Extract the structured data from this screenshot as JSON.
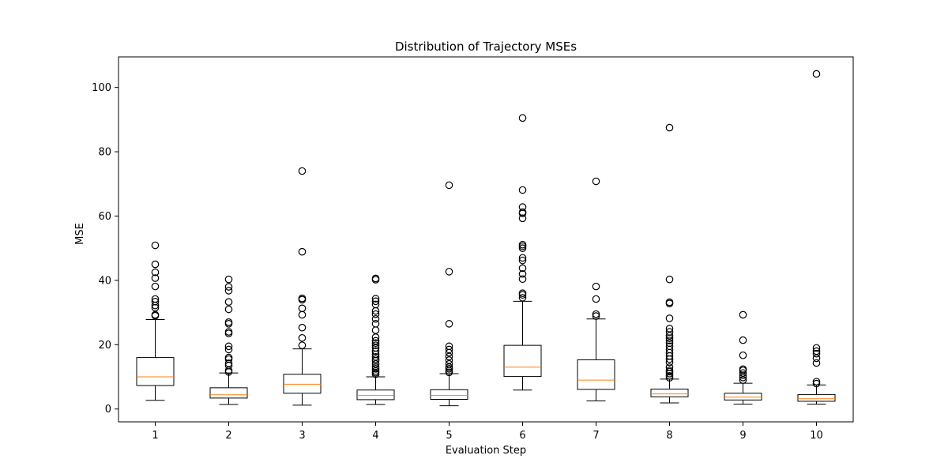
{
  "chart_data": {
    "type": "boxplot",
    "title": "Distribution of Trajectory MSEs",
    "xlabel": "Evaluation Step",
    "ylabel": "MSE",
    "ylim": [
      -4,
      109.5
    ],
    "yticks": [
      0,
      20,
      40,
      60,
      80,
      100
    ],
    "categories": [
      "1",
      "2",
      "3",
      "4",
      "5",
      "6",
      "7",
      "8",
      "9",
      "10"
    ],
    "grid": false,
    "colors": {
      "box": "#000000",
      "median": "#ff7f0e",
      "flier": "#000000"
    },
    "boxes": [
      {
        "label": "1",
        "whisker_low": 2.7,
        "q1": 7.3,
        "median": 10.0,
        "q3": 16.0,
        "whisker_high": 27.8,
        "fliers": [
          29.0,
          29.3,
          31.5,
          32.2,
          33.4,
          34.2,
          38.1,
          40.7,
          42.5,
          45.0,
          50.9
        ]
      },
      {
        "label": "2",
        "whisker_low": 1.4,
        "q1": 3.4,
        "median": 4.4,
        "q3": 6.6,
        "whisker_high": 11.2,
        "fliers": [
          11.5,
          12.0,
          13.5,
          14.2,
          15.5,
          16.0,
          18.5,
          19.5,
          23.5,
          24.0,
          26.5,
          27.0,
          31.0,
          33.3,
          36.8,
          38.0,
          40.3
        ]
      },
      {
        "label": "3",
        "whisker_low": 1.2,
        "q1": 4.9,
        "median": 7.7,
        "q3": 10.8,
        "whisker_high": 18.7,
        "fliers": [
          19.8,
          22.1,
          25.3,
          29.3,
          31.3,
          34.0,
          34.4,
          48.9,
          74.0
        ]
      },
      {
        "label": "4",
        "whisker_low": 1.4,
        "q1": 2.9,
        "median": 4.2,
        "q3": 5.9,
        "whisker_high": 10.0,
        "fliers": [
          10.8,
          11.3,
          11.8,
          12.5,
          13.0,
          14.0,
          15.0,
          15.5,
          16.2,
          17.0,
          18.0,
          19.0,
          19.8,
          20.5,
          21.2,
          22.3,
          24.5,
          26.5,
          28.0,
          29.5,
          30.5,
          32.5,
          33.5,
          34.3,
          40.2,
          40.6
        ]
      },
      {
        "label": "5",
        "whisker_low": 1.0,
        "q1": 3.0,
        "median": 4.2,
        "q3": 6.0,
        "whisker_high": 11.0,
        "fliers": [
          11.4,
          11.9,
          12.5,
          13.0,
          14.0,
          15.2,
          16.3,
          17.5,
          18.5,
          19.5,
          26.5,
          42.7,
          69.6
        ]
      },
      {
        "label": "6",
        "whisker_low": 5.9,
        "q1": 10.1,
        "median": 13.0,
        "q3": 19.8,
        "whisker_high": 33.5,
        "fliers": [
          34.6,
          35.5,
          36.0,
          40.4,
          42.0,
          43.8,
          46.2,
          47.0,
          50.0,
          50.6,
          51.1,
          59.3,
          60.8,
          61.2,
          62.8,
          68.1,
          90.5
        ]
      },
      {
        "label": "7",
        "whisker_low": 2.5,
        "q1": 6.1,
        "median": 9.0,
        "q3": 15.3,
        "whisker_high": 28.0,
        "fliers": [
          28.9,
          29.5,
          34.2,
          38.1,
          70.8
        ]
      },
      {
        "label": "8",
        "whisker_low": 1.9,
        "q1": 3.8,
        "median": 4.7,
        "q3": 6.2,
        "whisker_high": 9.3,
        "fliers": [
          9.7,
          10.3,
          11.0,
          11.6,
          12.0,
          13.0,
          14.5,
          15.5,
          16.5,
          17.5,
          18.5,
          19.5,
          20.5,
          21.3,
          22.0,
          22.8,
          24.0,
          25.0,
          28.2,
          32.8,
          33.2,
          40.3,
          87.5
        ]
      },
      {
        "label": "9",
        "whisker_low": 1.5,
        "q1": 2.8,
        "median": 3.7,
        "q3": 4.9,
        "whisker_high": 8.0,
        "fliers": [
          9.0,
          9.8,
          10.5,
          11.2,
          12.0,
          12.4,
          16.7,
          21.4,
          29.3
        ]
      },
      {
        "label": "10",
        "whisker_low": 1.5,
        "q1": 2.4,
        "median": 3.2,
        "q3": 4.5,
        "whisker_high": 7.5,
        "fliers": [
          7.9,
          8.5,
          14.3,
          15.8,
          17.2,
          18.0,
          19.0,
          104.2
        ]
      }
    ]
  }
}
